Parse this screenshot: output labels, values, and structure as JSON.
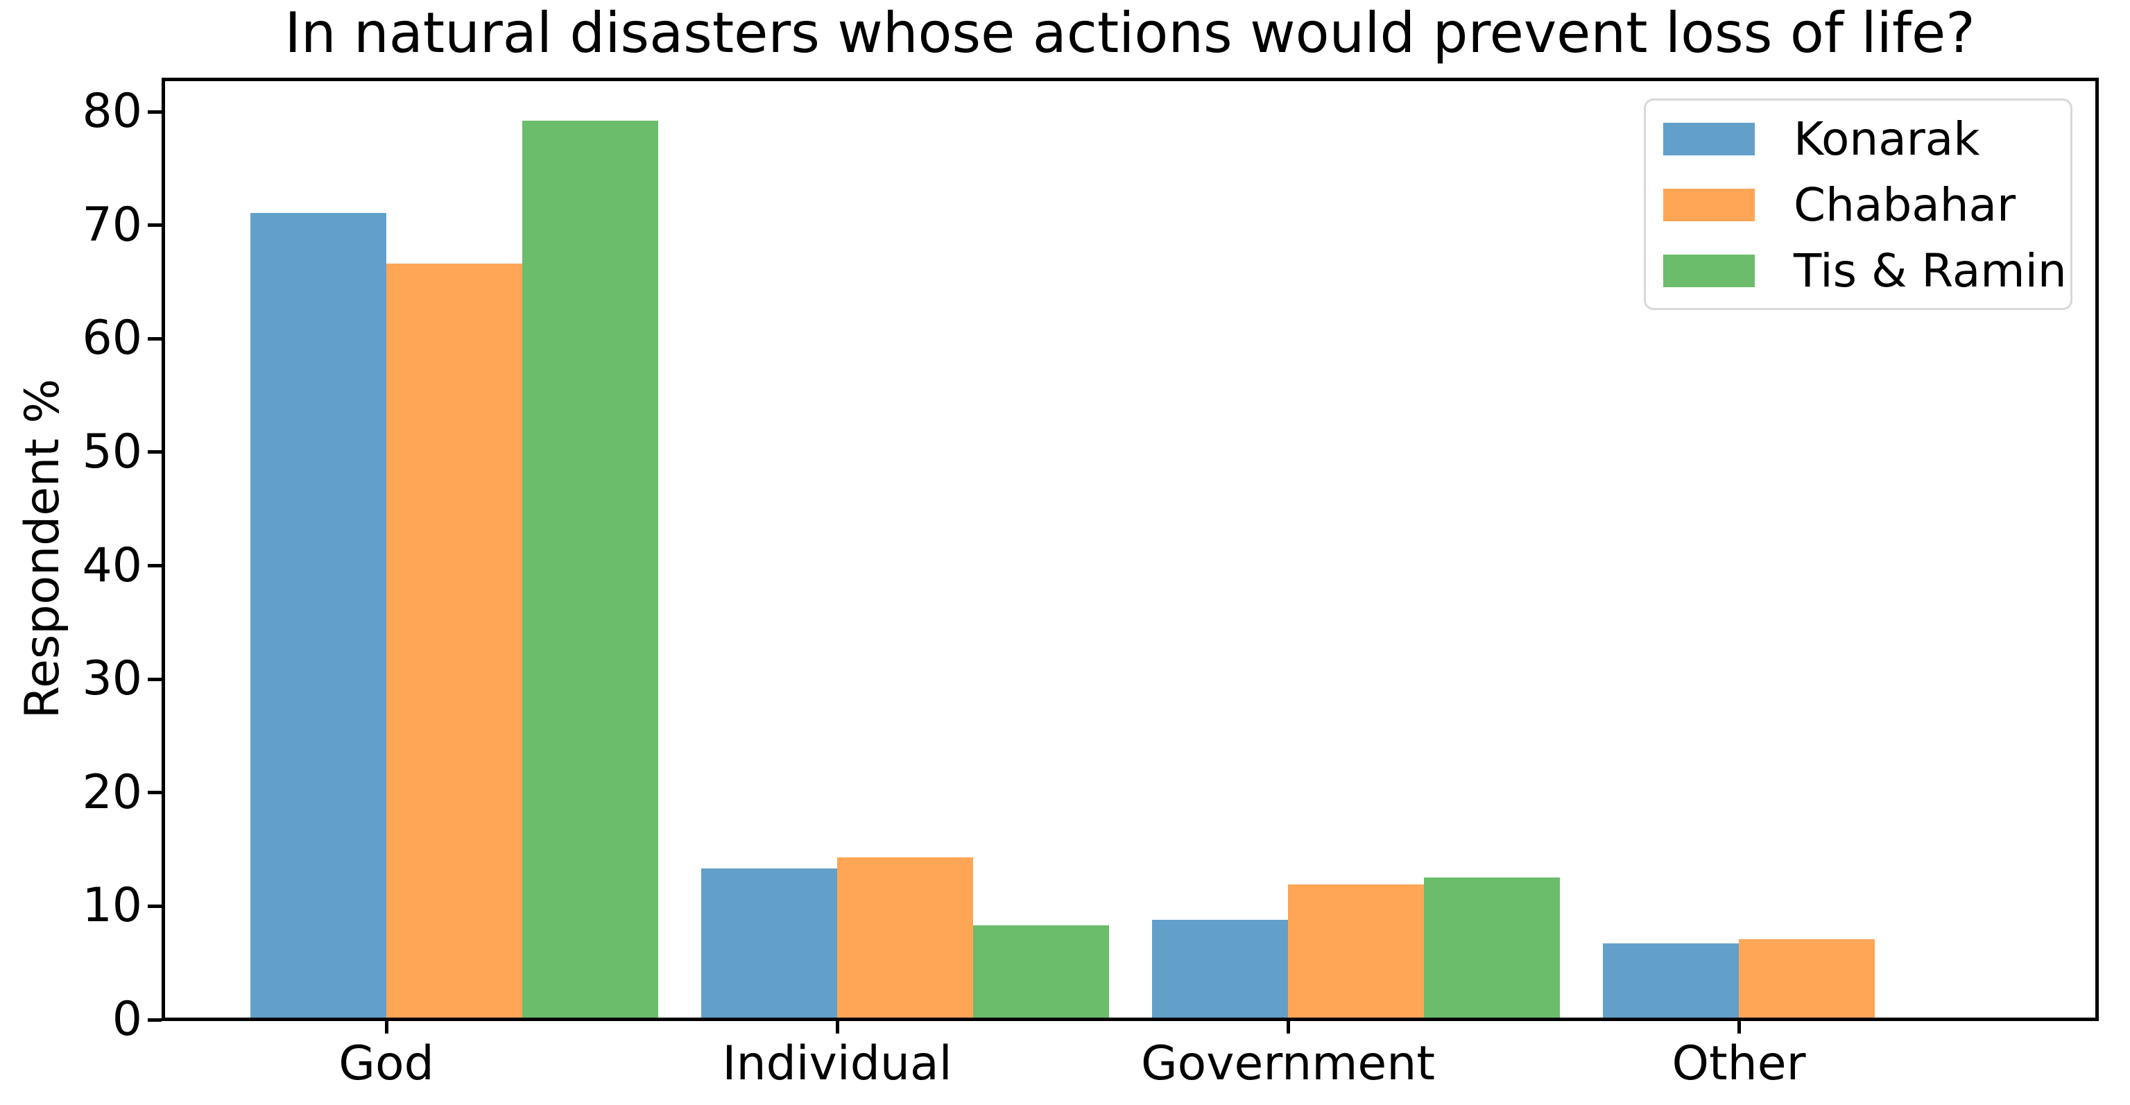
{
  "title": "In natural disasters whose actions would prevent loss of life?",
  "chart_data": {
    "type": "bar",
    "title": "In natural disasters whose actions would prevent loss of life?",
    "xlabel": "",
    "ylabel": "Respondent %",
    "categories": [
      "God",
      "Individual",
      "Government",
      "Other"
    ],
    "series": [
      {
        "name": "Konarak",
        "color": "#62A0CA",
        "values": [
          71.1,
          13.3,
          8.8,
          6.7
        ]
      },
      {
        "name": "Chabahar",
        "color": "#FFA556",
        "values": [
          66.6,
          14.3,
          11.9,
          7.1
        ]
      },
      {
        "name": "Tis & Ramin",
        "color": "#6BBC6B",
        "values": [
          79.2,
          8.3,
          12.5,
          0.0
        ]
      }
    ],
    "ylim": [
      0,
      83
    ],
    "yticks": [
      0,
      10,
      20,
      30,
      40,
      50,
      60,
      70,
      80
    ],
    "grid": false,
    "legend_position": "upper right",
    "bar_group_layout": "3 bars per category, flush, third series offset right of tick",
    "spine_color": "#000000",
    "background_color": "#ffffff"
  }
}
